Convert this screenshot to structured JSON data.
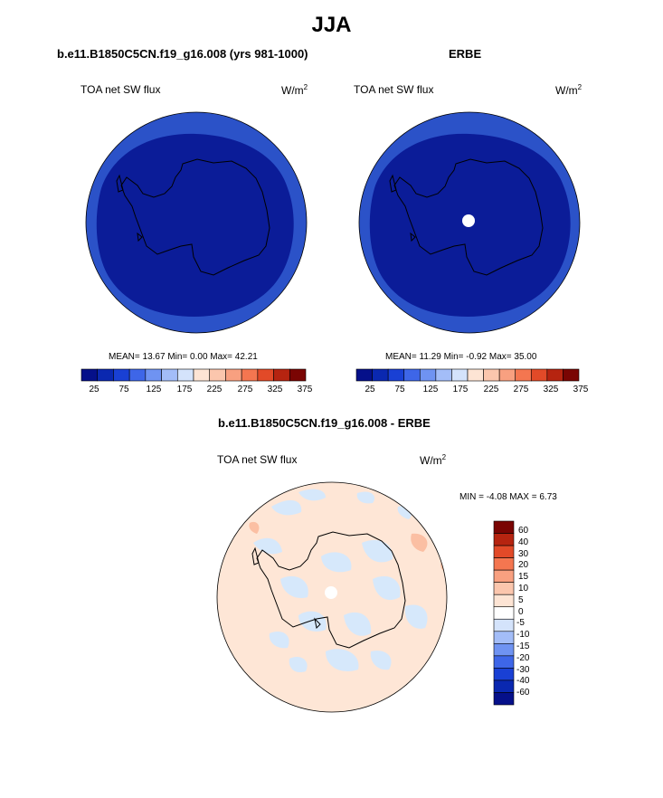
{
  "figure": {
    "title": "JJA",
    "colors": {
      "background": "#ffffff",
      "outer_ring_blue": "#2b52c8",
      "inner_dark_blue": "#0b1c98",
      "diff_background": "#fee6d6",
      "diff_light_blue": "#d6e8fb",
      "diff_light_orange": "#fbbfa3",
      "coast": "#000000"
    }
  },
  "panels": [
    {
      "title": "b.e11.B1850C5CN.f19_g16.008 (yrs 981-1000)",
      "variable": "TOA net SW flux",
      "units": "W/m",
      "units_sup": "2",
      "stats": "MEAN=  13.67  Min=   0.00  Max=  42.21"
    },
    {
      "title": "ERBE",
      "variable": "TOA net SW flux",
      "units": "W/m",
      "units_sup": "2",
      "stats": "MEAN=  11.29  Min=  -0.92  Max=  35.00"
    }
  ],
  "colorbar_h": {
    "ticks": [
      "25",
      "75",
      "125",
      "175",
      "225",
      "275",
      "325",
      "375"
    ],
    "colors": [
      "#05108a",
      "#0a28b0",
      "#1940d4",
      "#3e66e8",
      "#6f93f2",
      "#a3bdf8",
      "#d4e3fb",
      "#fde4d4",
      "#fbc6ad",
      "#f8a080",
      "#f47650",
      "#e24a28",
      "#b62410",
      "#7a0503"
    ]
  },
  "diff_panel": {
    "title": "b.e11.B1850C5CN.f19_g16.008 - ERBE",
    "variable": "TOA net SW flux",
    "units": "W/m",
    "units_sup": "2",
    "minmax": "MIN =  -4.08 MAX =   6.73"
  },
  "colorbar_v": {
    "labels": [
      "60",
      "40",
      "30",
      "20",
      "15",
      "10",
      "5",
      "0",
      "-5",
      "-10",
      "-15",
      "-20",
      "-30",
      "-40",
      "-60"
    ],
    "colors": [
      "#7a0503",
      "#b62410",
      "#e24a28",
      "#f47650",
      "#f8a080",
      "#fbc6ad",
      "#fde4d4",
      "#ffffff",
      "#d4e3fb",
      "#a3bdf8",
      "#6f93f2",
      "#3e66e8",
      "#1940d4",
      "#0a28b0",
      "#05108a"
    ]
  }
}
